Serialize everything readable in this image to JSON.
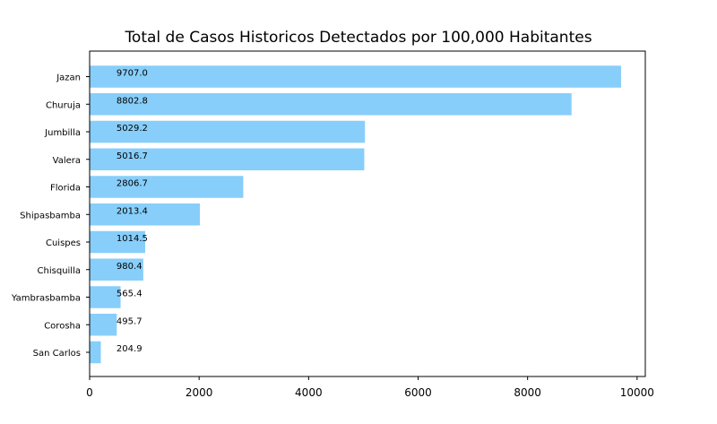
{
  "chart_data": {
    "type": "bar",
    "orientation": "horizontal",
    "title": "Total de Casos Historicos Detectados por 100,000 Habitantes",
    "xlabel": "",
    "ylabel": "",
    "xlim": [
      0,
      10150
    ],
    "xticks": [
      "0",
      "2000",
      "4000",
      "6000",
      "8000",
      "10000"
    ],
    "grid": false,
    "bar_color": "#87CEFA",
    "categories": [
      "Jazan",
      "Churuja",
      "Jumbilla",
      "Valera",
      "Florida",
      "Shipasbamba",
      "Cuispes",
      "Chisquilla",
      "Yambrasbamba",
      "Corosha",
      "San Carlos"
    ],
    "values": [
      9707.0,
      8802.8,
      5029.2,
      5016.7,
      2806.7,
      2013.4,
      1014.5,
      980.4,
      565.4,
      495.7,
      204.9
    ],
    "labels": [
      "9707.0",
      "8802.8",
      "5029.2",
      "5016.7",
      "2806.7",
      "2013.4",
      "1014.5",
      "980.4",
      "565.4",
      "495.7",
      "204.9"
    ],
    "label_anchor_value": 490
  }
}
